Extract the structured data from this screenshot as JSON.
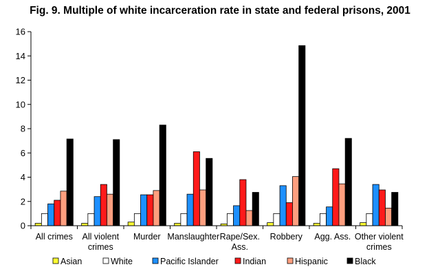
{
  "chart_data": {
    "type": "bar",
    "title": "Fig. 9. Multiple of white incarceration rate in state and federal prisons, 2001",
    "xlabel": "",
    "ylabel": "",
    "ylim": [
      0,
      16
    ],
    "yticks": [
      "0",
      "2",
      "4",
      "6",
      "8",
      "10",
      "12",
      "14",
      "16"
    ],
    "grid": false,
    "legend_position": "bottom",
    "categories": [
      [
        "All crimes"
      ],
      [
        "All violent",
        "crimes"
      ],
      [
        "Murder"
      ],
      [
        "Manslaughter"
      ],
      [
        "Rape/Sex.",
        "Ass."
      ],
      [
        "Robbery"
      ],
      [
        "Agg. Ass."
      ],
      [
        "Other violent",
        "crimes"
      ]
    ],
    "series": [
      {
        "name": "Asian",
        "color": "#ffff33",
        "values": [
          0.2,
          0.2,
          0.3,
          0.2,
          0.15,
          0.25,
          0.2,
          0.25
        ]
      },
      {
        "name": "White",
        "color": "#ffffff",
        "values": [
          1,
          1,
          1,
          1,
          1,
          1,
          1,
          1
        ]
      },
      {
        "name": "Pacific Islander",
        "color": "#1e90ff",
        "values": [
          1.8,
          2.4,
          2.55,
          2.6,
          1.65,
          3.3,
          1.55,
          3.4
        ]
      },
      {
        "name": "Indian",
        "color": "#ff1a1a",
        "values": [
          2.1,
          3.4,
          2.55,
          6.1,
          3.8,
          1.9,
          4.7,
          2.95
        ]
      },
      {
        "name": "Hispanic",
        "color": "#ff9f7f",
        "values": [
          2.85,
          2.6,
          2.9,
          2.95,
          1.25,
          4.05,
          3.45,
          1.45
        ]
      },
      {
        "name": "Black",
        "color": "#000000",
        "values": [
          7.15,
          7.1,
          8.3,
          5.55,
          2.75,
          14.85,
          7.2,
          2.75
        ]
      }
    ]
  }
}
